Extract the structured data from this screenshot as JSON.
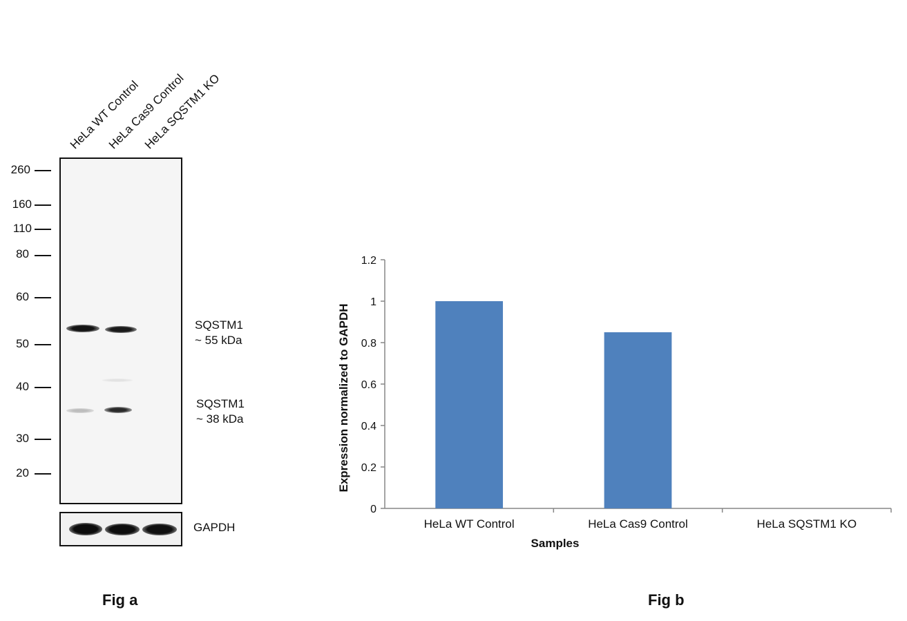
{
  "fig_a": {
    "lanes": [
      "HeLa WT Control",
      "HeLa Cas9 Control",
      "HeLa SQSTM1 KO"
    ],
    "mw_markers": [
      "260",
      "160",
      "110",
      "80",
      "60",
      "50",
      "40",
      "30",
      "20"
    ],
    "band_labels": {
      "sqstm1_55_name": "SQSTM1",
      "sqstm1_55_size": "~ 55 kDa",
      "sqstm1_38_name": "SQSTM1",
      "sqstm1_38_size": "~ 38 kDa",
      "gapdh": "GAPDH"
    },
    "caption": "Fig a"
  },
  "fig_b": {
    "caption": "Fig b"
  },
  "chart_data": {
    "type": "bar",
    "categories": [
      "HeLa WT Control",
      "HeLa Cas9 Control",
      "HeLa SQSTM1 KO"
    ],
    "values": [
      1.0,
      0.85,
      0.0
    ],
    "xlabel": "Samples",
    "ylabel": "Expression  normalized to GAPDH",
    "ylim": [
      0,
      1.2
    ],
    "yticks": [
      "0",
      "0.2",
      "0.4",
      "0.6",
      "0.8",
      "1",
      "1.2"
    ],
    "bar_color": "#4f81bd",
    "grid": false,
    "legend": "none"
  }
}
